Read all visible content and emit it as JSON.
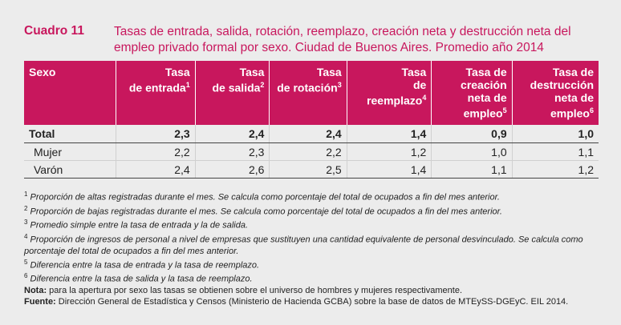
{
  "header": {
    "number": "Cuadro 11",
    "title": "Tasas de entrada, salida, rotación, reemplazo, creación neta y destrucción neta del empleo privado formal por sexo. Ciudad de Buenos Aires. Promedio año 2014"
  },
  "table": {
    "columns": [
      {
        "label": "Sexo",
        "sup": ""
      },
      {
        "label": "Tasa de entrada",
        "sup": "1"
      },
      {
        "label": "Tasa de salida",
        "sup": "2"
      },
      {
        "label": "Tasa de rotación",
        "sup": "3"
      },
      {
        "label": "Tasa de reemplazo",
        "sup": "4"
      },
      {
        "label": "Tasa de creación neta de empleo",
        "sup": "5"
      },
      {
        "label": "Tasa de destrucción neta de empleo",
        "sup": "6"
      }
    ],
    "rows": [
      {
        "label": "Total",
        "values": [
          "2,3",
          "2,4",
          "2,4",
          "1,4",
          "0,9",
          "1,0"
        ]
      },
      {
        "label": "Mujer",
        "values": [
          "2,2",
          "2,3",
          "2,2",
          "1,2",
          "1,0",
          "1,1"
        ]
      },
      {
        "label": "Varón",
        "values": [
          "2,4",
          "2,6",
          "2,5",
          "1,4",
          "1,1",
          "1,2"
        ]
      }
    ]
  },
  "notes": {
    "fn1": "Proporción de altas registradas durante el mes. Se calcula como porcentaje del total de ocupados a fin del mes anterior.",
    "fn2": "Proporción de bajas registradas durante el mes. Se calcula como porcentaje del total de ocupados a fin del mes anterior.",
    "fn3": "Promedio simple entre la tasa de entrada y la de salida.",
    "fn4": "Proporción de ingresos de personal a nivel de empresas que sustituyen una cantidad equivalente de personal desvinculado. Se calcula como porcentaje del total de ocupados a fin del mes anterior.",
    "fn5": "Diferencia entre la tasa de entrada y la tasa de reemplazo.",
    "fn6": "Diferencia entre la tasa de salida y la tasa de reemplazo.",
    "nota_label": "Nota:",
    "nota_text": "para la apertura por sexo las tasas se obtienen sobre el universo de hombres y mujeres respectivamente.",
    "fuente_label": "Fuente:",
    "fuente_text": "Dirección General de Estadística y Censos (Ministerio de Hacienda GCBA) sobre la base de datos de MTEySS-DGEyC. EIL 2014."
  }
}
